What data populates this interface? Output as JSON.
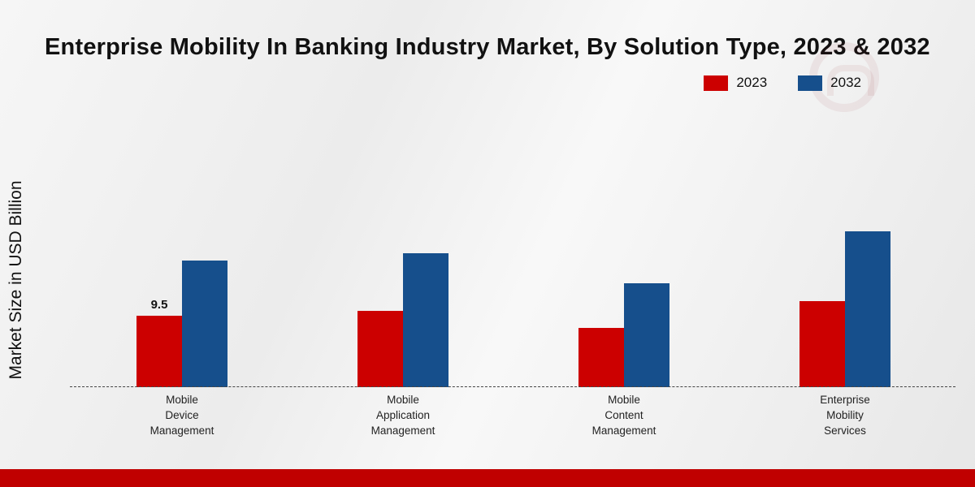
{
  "title": "Enterprise Mobility In Banking Industry Market, By Solution Type, 2023 & 2032",
  "y_axis_label": "Market Size in USD Billion",
  "legend": [
    {
      "label": "2023",
      "color": "#cc0000"
    },
    {
      "label": "2032",
      "color": "#164f8c"
    }
  ],
  "colors": {
    "bar_2023": "#cc0000",
    "bar_2032": "#164f8c",
    "footer_band": "#c00000",
    "baseline": "#444444"
  },
  "chart_data": {
    "type": "bar",
    "title": "Enterprise Mobility In Banking Industry Market, By Solution Type, 2023 & 2032",
    "xlabel": "",
    "ylabel": "Market Size in USD Billion",
    "ylim": [
      0,
      22
    ],
    "grid": false,
    "legend_position": "top-right",
    "categories": [
      "Mobile Device Management",
      "Mobile Application Management",
      "Mobile Content Management",
      "Enterprise Mobility Services"
    ],
    "categories_display": [
      "Mobile\nDevice\nManagement",
      "Mobile\nApplication\nManagement",
      "Mobile\nContent\nManagement",
      "Enterprise\nMobility\nServices"
    ],
    "series": [
      {
        "name": "2023",
        "color": "#cc0000",
        "values": [
          9.5,
          10.1,
          7.9,
          11.4
        ],
        "labels": [
          "9.5",
          "",
          "",
          ""
        ]
      },
      {
        "name": "2032",
        "color": "#164f8c",
        "values": [
          16.8,
          17.7,
          13.8,
          20.6
        ],
        "labels": [
          "",
          "",
          "",
          ""
        ]
      }
    ],
    "data_label_shown": "9.5"
  },
  "footer": {
    "band_color": "#c00000"
  }
}
